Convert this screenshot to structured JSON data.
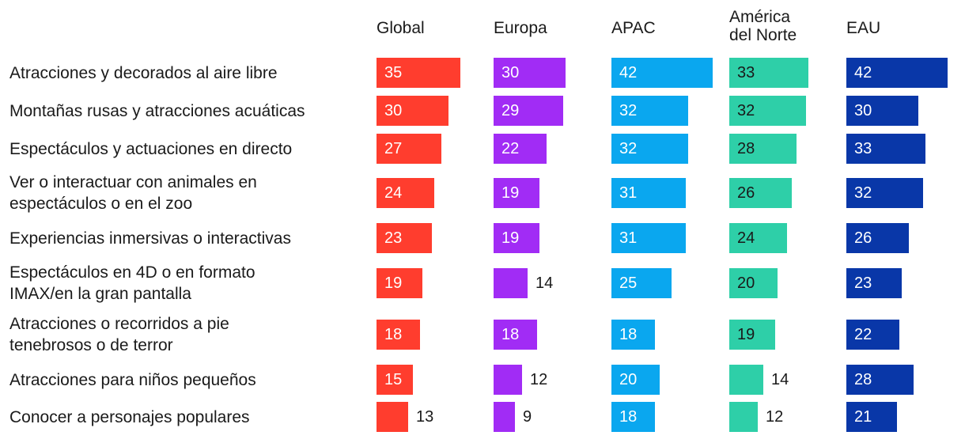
{
  "chart_data": {
    "type": "bar",
    "title": "",
    "categories": [
      "Atracciones y decorados al aire libre",
      "Montañas rusas y atracciones acuáticas",
      "Espectáculos y actuaciones en directo",
      "Ver o interactuar con animales en\nespectáculos o en el zoo",
      "Experiencias inmersivas o interactivas",
      "Espectáculos en 4D o en formato\nIMAX/en la gran pantalla",
      "Atracciones o recorridos a pie\ntenebrosos o de terror",
      "Atracciones para niños pequeños",
      "Conocer a personajes populares"
    ],
    "series": [
      {
        "name": "Global",
        "color": "#ff3d2e",
        "values": [
          35,
          30,
          27,
          24,
          23,
          19,
          18,
          15,
          13
        ]
      },
      {
        "name": "Europa",
        "color": "#a12cf5",
        "values": [
          30,
          29,
          22,
          19,
          19,
          14,
          18,
          12,
          9
        ]
      },
      {
        "name": "APAC",
        "color": "#0aa7ef",
        "values": [
          42,
          32,
          32,
          31,
          31,
          25,
          18,
          20,
          18
        ]
      },
      {
        "name": "América\ndel Norte",
        "color": "#2ecfa8",
        "values": [
          33,
          32,
          28,
          26,
          24,
          20,
          19,
          14,
          12
        ]
      },
      {
        "name": "EAU",
        "color": "#0937a8",
        "values": [
          42,
          30,
          33,
          32,
          26,
          23,
          22,
          28,
          21
        ]
      }
    ],
    "value_label_colors": {
      "Global": "#ffffff",
      "Europa": "#ffffff",
      "APAC": "#ffffff",
      "América\ndel Norte": "#1a1a1a",
      "EAU": "#ffffff"
    },
    "outside_label_color": "#1a1a1a",
    "xlabel": "",
    "ylabel": ""
  }
}
